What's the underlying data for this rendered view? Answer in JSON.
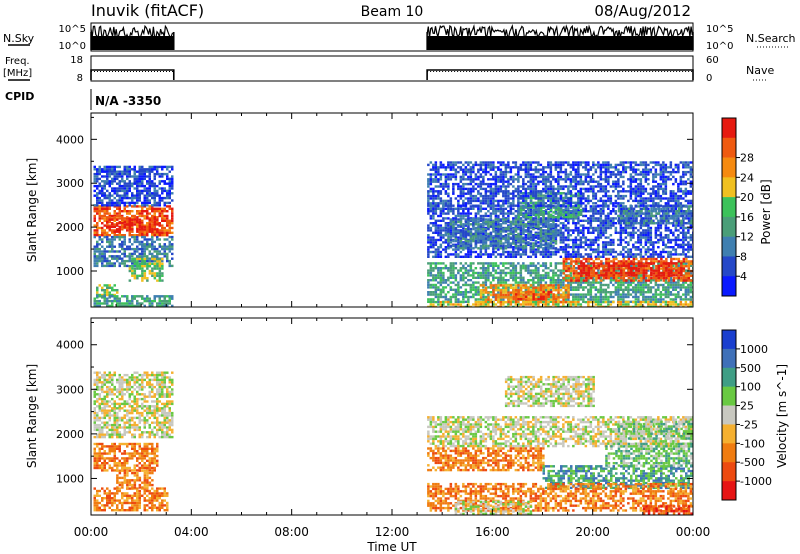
{
  "header": {
    "station": "Inuvik (fitACF)",
    "beam": "Beam 10",
    "date": "08/Aug/2012"
  },
  "status_panels": {
    "nsky": {
      "label": "N.Sky",
      "right_label": "N.Search",
      "left_ticks": [
        "10^5",
        "10^0"
      ],
      "right_ticks": [
        "10^5",
        "10^0"
      ]
    },
    "freq": {
      "label_line1": "Freq.",
      "label_line2": "[MHz]",
      "right_label": "Nave",
      "left_ticks": [
        "18",
        "8"
      ],
      "right_ticks": [
        "60",
        "0"
      ]
    },
    "cpid": {
      "label": "CPID",
      "value": "N/A -3350"
    }
  },
  "time_axis": {
    "label": "Time UT",
    "ticks": [
      "00:00",
      "04:00",
      "08:00",
      "12:00",
      "16:00",
      "20:00",
      "00:00"
    ],
    "range_hours": [
      0,
      24
    ]
  },
  "chart_data": [
    {
      "type": "heatmap",
      "quantity": "power",
      "ylabel": "Slant Range [km]",
      "yticks": [
        "1000",
        "2000",
        "3000",
        "4000"
      ],
      "ylim": [
        180,
        4600
      ],
      "xlim": [
        0,
        24
      ],
      "colorbar": {
        "label": "Power [dB]",
        "ticks": [
          "4",
          "8",
          "12",
          "16",
          "20",
          "24",
          "28"
        ],
        "colors": [
          "#0a1aff",
          "#2548c8",
          "#3f7fb0",
          "#4a9e78",
          "#3cc25a",
          "#f0c020",
          "#f58a10",
          "#ef5a10",
          "#e61a10"
        ]
      },
      "data_intervals_hours": [
        [
          0,
          3.3
        ],
        [
          13.4,
          24
        ]
      ],
      "regions": [
        {
          "t": [
            0.1,
            3.2
          ],
          "r": [
            1800,
            2500
          ],
          "level": 7
        },
        {
          "t": [
            0.6,
            2.6
          ],
          "r": [
            1900,
            2250
          ],
          "level": 8
        },
        {
          "t": [
            0.1,
            3.2
          ],
          "r": [
            1100,
            1800
          ],
          "level": 2
        },
        {
          "t": [
            0.2,
            1.0
          ],
          "r": [
            400,
            700
          ],
          "level": 4
        },
        {
          "t": [
            0.1,
            3.2
          ],
          "r": [
            200,
            450
          ],
          "level": 3
        },
        {
          "t": [
            1.5,
            2.8
          ],
          "r": [
            800,
            1300
          ],
          "level": 4
        },
        {
          "t": [
            0.1,
            3.2
          ],
          "r": [
            2500,
            3400
          ],
          "level": 1
        },
        {
          "t": [
            13.4,
            24
          ],
          "r": [
            1300,
            2500
          ],
          "level": 1
        },
        {
          "t": [
            14.2,
            18.5
          ],
          "r": [
            1500,
            2200
          ],
          "level": 2
        },
        {
          "t": [
            13.4,
            24
          ],
          "r": [
            300,
            1200
          ],
          "level": 3
        },
        {
          "t": [
            18.8,
            24
          ],
          "r": [
            800,
            1300
          ],
          "level": 7
        },
        {
          "t": [
            19.5,
            23.5
          ],
          "r": [
            900,
            1200
          ],
          "level": 8
        },
        {
          "t": [
            15.5,
            19.0
          ],
          "r": [
            300,
            700
          ],
          "level": 6
        },
        {
          "t": [
            16.8,
            18.5
          ],
          "r": [
            350,
            550
          ],
          "level": 7
        },
        {
          "t": [
            17.0,
            19.5
          ],
          "r": [
            2200,
            2800
          ],
          "level": 3
        },
        {
          "t": [
            21.0,
            24
          ],
          "r": [
            2100,
            2500
          ],
          "level": 2
        },
        {
          "t": [
            13.4,
            24
          ],
          "r": [
            2500,
            3500
          ],
          "level": 1
        },
        {
          "t": [
            13.4,
            24
          ],
          "r": [
            180,
            320
          ],
          "level": 5
        }
      ]
    },
    {
      "type": "heatmap",
      "quantity": "velocity",
      "ylabel": "Slant Range [km]",
      "yticks": [
        "1000",
        "2000",
        "3000",
        "4000"
      ],
      "ylim": [
        180,
        4600
      ],
      "xlim": [
        0,
        24
      ],
      "colorbar": {
        "label": "Velocity [m s^-1]",
        "ticks": [
          "1000",
          "500",
          "100",
          "25",
          "-25",
          "-100",
          "-500",
          "-1000"
        ],
        "colors": [
          "#1a3fcf",
          "#3f70b8",
          "#3f9e85",
          "#69c942",
          "#c8c8c0",
          "#f5b030",
          "#f07c10",
          "#ed4a10",
          "#e61414"
        ]
      },
      "data_intervals_hours": [
        [
          0,
          3.3
        ],
        [
          13.4,
          24
        ]
      ],
      "regions": [
        {
          "t": [
            0.1,
            3.2
          ],
          "r": [
            1900,
            2600
          ],
          "level": 4
        },
        {
          "t": [
            0.1,
            3.2
          ],
          "r": [
            2600,
            3400
          ],
          "level": 4
        },
        {
          "t": [
            0.1,
            2.6
          ],
          "r": [
            1200,
            1800
          ],
          "level": 6
        },
        {
          "t": [
            0.1,
            3.0
          ],
          "r": [
            300,
            800
          ],
          "level": 6
        },
        {
          "t": [
            1.0,
            2.4
          ],
          "r": [
            800,
            1200
          ],
          "level": 6
        },
        {
          "t": [
            13.4,
            24
          ],
          "r": [
            1700,
            2400
          ],
          "level": 4
        },
        {
          "t": [
            13.4,
            18.0
          ],
          "r": [
            1200,
            1700
          ],
          "level": 6
        },
        {
          "t": [
            18.0,
            24
          ],
          "r": [
            800,
            1300
          ],
          "level": 2
        },
        {
          "t": [
            20.5,
            24
          ],
          "r": [
            1300,
            1800
          ],
          "level": 3
        },
        {
          "t": [
            13.4,
            24
          ],
          "r": [
            300,
            900
          ],
          "level": 6
        },
        {
          "t": [
            14.5,
            17.5
          ],
          "r": [
            200,
            500
          ],
          "level": 4
        },
        {
          "t": [
            16.5,
            20.0
          ],
          "r": [
            2600,
            3300
          ],
          "level": 4
        },
        {
          "t": [
            21.0,
            24
          ],
          "r": [
            1900,
            2300
          ],
          "level": 3
        },
        {
          "t": [
            22.0,
            24
          ],
          "r": [
            180,
            400
          ],
          "level": 7
        }
      ]
    }
  ]
}
